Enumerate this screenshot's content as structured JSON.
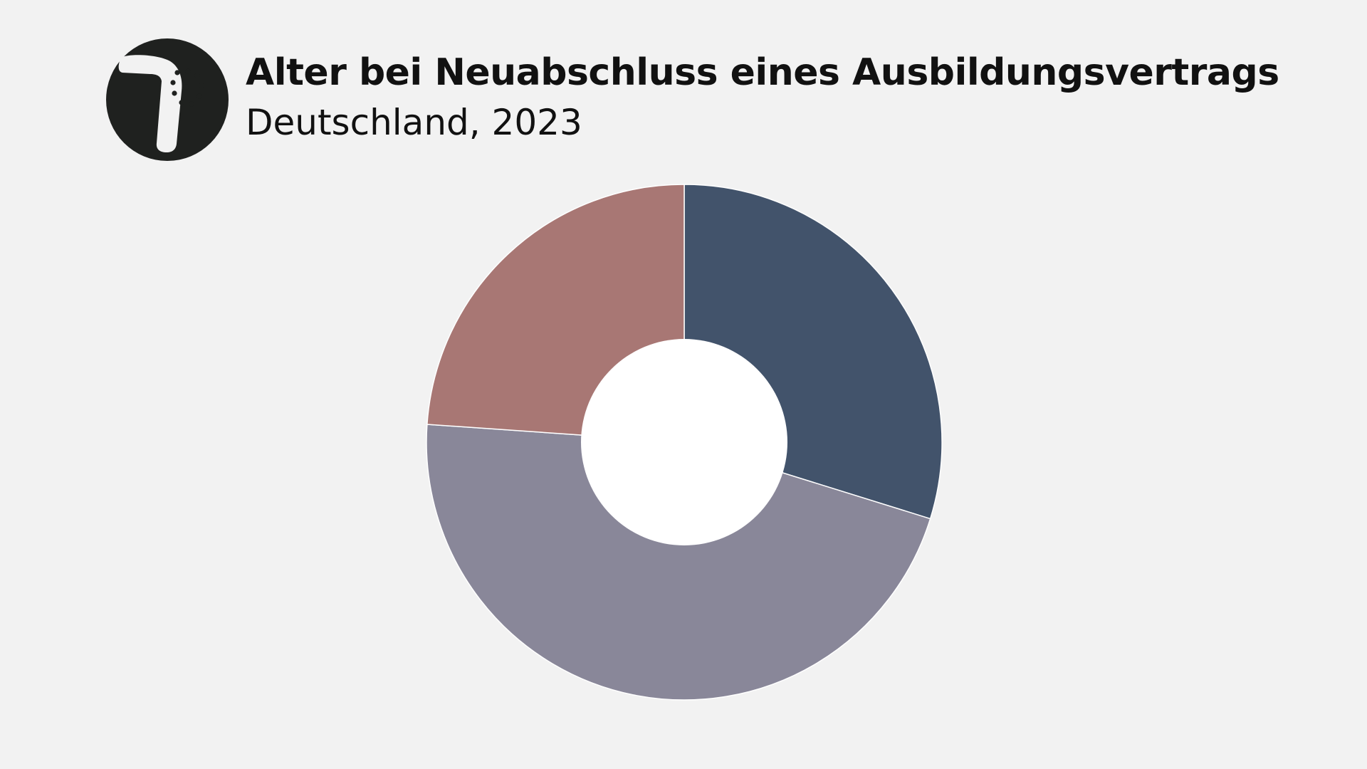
{
  "header": {
    "title": "Alter bei Neuabschluss eines Ausbildungsvertrags",
    "subtitle": "Deutschland, 2023",
    "logo_icon": "shower-head-icon"
  },
  "colors": {
    "background": "#f2f2f2",
    "logo_circle": "#1f211f",
    "logo_glyph": "#f2f2f2",
    "slice_separator": "#ffffff",
    "hole": "#ffffff"
  },
  "chart_data": {
    "type": "pie",
    "variant": "donut",
    "categories": [
      "",
      "",
      ""
    ],
    "values": [
      29.8,
      46.3,
      23.9
    ],
    "unit": "%",
    "colors": [
      "#42536b",
      "#898799",
      "#a87774"
    ],
    "start_angle_deg": 0,
    "direction": "clockwise",
    "title": "Alter bei Neuabschluss eines Ausbildungsvertrags",
    "subtitle": "Deutschland, 2023",
    "legend": "none",
    "grid": false
  }
}
